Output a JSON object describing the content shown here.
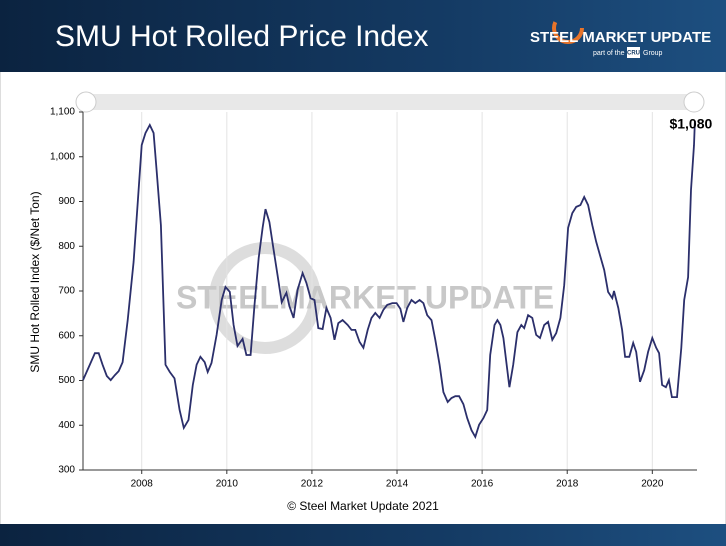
{
  "header": {
    "title": "SMU Hot Rolled Price Index",
    "logo": {
      "name": "STEEL MARKET UPDATE",
      "tagline_prefix": "part of the",
      "badge": "CRU",
      "tagline_suffix": "Group"
    }
  },
  "chart_data": {
    "type": "line",
    "y_axis_label": "SMU Hot Rolled Index ($/Net Ton)",
    "watermark": "STEELMARKET UPDATE",
    "color": "#2b2f6b",
    "x": [
      2006.62,
      2006.78,
      2006.9,
      2006.99,
      2007.08,
      2007.18,
      2007.27,
      2007.37,
      2007.46,
      2007.55,
      2007.67,
      2007.81,
      2007.91,
      2008.0,
      2008.09,
      2008.19,
      2008.28,
      2008.35,
      2008.45,
      2008.56,
      2008.66,
      2008.77,
      2008.89,
      2008.99,
      2009.1,
      2009.2,
      2009.29,
      2009.38,
      2009.48,
      2009.55,
      2009.64,
      2009.76,
      2009.88,
      2009.97,
      2010.07,
      2010.16,
      2010.25,
      2010.37,
      2010.46,
      2010.56,
      2010.65,
      2010.75,
      2010.84,
      2010.91,
      2011.0,
      2011.1,
      2011.19,
      2011.29,
      2011.4,
      2011.47,
      2011.57,
      2011.66,
      2011.78,
      2011.87,
      2011.97,
      2012.06,
      2012.15,
      2012.25,
      2012.34,
      2012.44,
      2012.53,
      2012.62,
      2012.72,
      2012.84,
      2012.93,
      2013.02,
      2013.12,
      2013.21,
      2013.31,
      2013.4,
      2013.49,
      2013.59,
      2013.68,
      2013.77,
      2013.89,
      2013.99,
      2014.08,
      2014.15,
      2014.24,
      2014.34,
      2014.43,
      2014.53,
      2014.62,
      2014.71,
      2014.81,
      2014.9,
      2015.0,
      2015.09,
      2015.19,
      2015.28,
      2015.37,
      2015.46,
      2015.56,
      2015.65,
      2015.75,
      2015.84,
      2015.93,
      2016.03,
      2016.12,
      2016.19,
      2016.29,
      2016.36,
      2016.43,
      2016.5,
      2016.64,
      2016.73,
      2016.83,
      2016.92,
      2016.99,
      2017.08,
      2017.18,
      2017.27,
      2017.36,
      2017.46,
      2017.55,
      2017.65,
      2017.74,
      2017.84,
      2017.93,
      2018.02,
      2018.12,
      2018.21,
      2018.31,
      2018.4,
      2018.49,
      2018.59,
      2018.68,
      2018.77,
      2018.87,
      2018.96,
      2019.06,
      2019.1,
      2019.2,
      2019.29,
      2019.36,
      2019.46,
      2019.55,
      2019.62,
      2019.71,
      2019.81,
      2019.9,
      2020.0,
      2020.09,
      2020.16,
      2020.23,
      2020.32,
      2020.39,
      2020.46,
      2020.58,
      2020.68,
      2020.75,
      2020.84,
      2020.91,
      2020.98,
      2021.0
    ],
    "values": [
      501,
      535,
      561,
      561,
      535,
      510,
      501,
      512,
      521,
      541,
      635,
      765,
      903,
      1026,
      1053,
      1071,
      1053,
      970,
      847,
      535,
      519,
      505,
      434,
      394,
      412,
      490,
      535,
      553,
      541,
      519,
      539,
      602,
      680,
      709,
      698,
      624,
      577,
      593,
      557,
      557,
      669,
      774,
      841,
      883,
      854,
      792,
      736,
      675,
      696,
      666,
      640,
      702,
      740,
      718,
      684,
      680,
      617,
      615,
      662,
      640,
      591,
      628,
      635,
      624,
      613,
      613,
      586,
      573,
      613,
      640,
      651,
      640,
      658,
      669,
      673,
      673,
      660,
      631,
      662,
      680,
      673,
      680,
      673,
      646,
      635,
      591,
      535,
      474,
      452,
      461,
      465,
      465,
      447,
      416,
      389,
      374,
      401,
      416,
      434,
      557,
      624,
      635,
      624,
      595,
      485,
      535,
      608,
      624,
      617,
      646,
      640,
      602,
      595,
      624,
      631,
      591,
      606,
      640,
      713,
      841,
      874,
      888,
      892,
      910,
      892,
      847,
      810,
      780,
      747,
      698,
      684,
      700,
      662,
      613,
      553,
      553,
      584,
      564,
      497,
      523,
      564,
      595,
      573,
      561,
      490,
      485,
      501,
      463,
      463,
      573,
      680,
      731,
      926,
      1026,
      1080
    ],
    "last_value_label": "$1,080",
    "xlim": [
      2006.62,
      2021.05
    ],
    "xticks": [
      2008,
      2010,
      2012,
      2014,
      2016,
      2018,
      2020
    ],
    "ylim": [
      300,
      1100
    ],
    "yticks": [
      300,
      400,
      500,
      600,
      700,
      800,
      900,
      {
        "value": 1000,
        "label": "1,000"
      },
      {
        "value": 1100,
        "label": "1,100"
      }
    ],
    "grid_x": true,
    "grid_y": false
  },
  "footer": {
    "copyright": "© Steel Market Update 2021"
  }
}
